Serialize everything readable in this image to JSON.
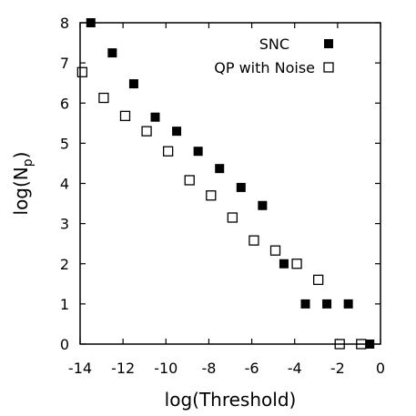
{
  "chart_data": {
    "type": "scatter",
    "xlabel": "log(Threshold)",
    "ylabel": "log(N",
    "ylabel_subscript": "p",
    "ylabel_close": ")",
    "xlim": [
      -14,
      0
    ],
    "ylim": [
      0,
      8
    ],
    "xticks": [
      -14,
      -12,
      -10,
      -8,
      -6,
      -4,
      -2,
      0
    ],
    "yticks": [
      0,
      1,
      2,
      3,
      4,
      5,
      6,
      7,
      8
    ],
    "xtick_labels": [
      "-14",
      "-12",
      "-10",
      "-8",
      "-6",
      "-4",
      "-2",
      "0"
    ],
    "ytick_labels": [
      "0",
      "1",
      "2",
      "3",
      "4",
      "5",
      "6",
      "7",
      "8"
    ],
    "legend_position": "top-right",
    "series": [
      {
        "name": "SNC",
        "marker": "filled-square",
        "color": "#000000",
        "points": [
          [
            -13.5,
            8.0
          ],
          [
            -12.5,
            7.25
          ],
          [
            -11.5,
            6.48
          ],
          [
            -10.5,
            5.65
          ],
          [
            -9.5,
            5.3
          ],
          [
            -8.5,
            4.8
          ],
          [
            -7.5,
            4.37
          ],
          [
            -6.5,
            3.9
          ],
          [
            -5.5,
            3.45
          ],
          [
            -4.5,
            2.0
          ],
          [
            -3.5,
            1.0
          ],
          [
            -2.5,
            1.0
          ],
          [
            -1.5,
            1.0
          ],
          [
            -0.5,
            0.0
          ]
        ]
      },
      {
        "name": "QP with Noise",
        "marker": "open-square",
        "color": "#000000",
        "points": [
          [
            -13.9,
            6.77
          ],
          [
            -12.9,
            6.13
          ],
          [
            -11.9,
            5.68
          ],
          [
            -10.9,
            5.3
          ],
          [
            -9.9,
            4.8
          ],
          [
            -8.9,
            4.08
          ],
          [
            -7.9,
            3.7
          ],
          [
            -6.9,
            3.15
          ],
          [
            -5.9,
            2.58
          ],
          [
            -4.9,
            2.33
          ],
          [
            -3.9,
            2.0
          ],
          [
            -2.9,
            1.6
          ],
          [
            -1.9,
            0.0
          ],
          [
            -0.9,
            0.0
          ]
        ]
      }
    ]
  }
}
